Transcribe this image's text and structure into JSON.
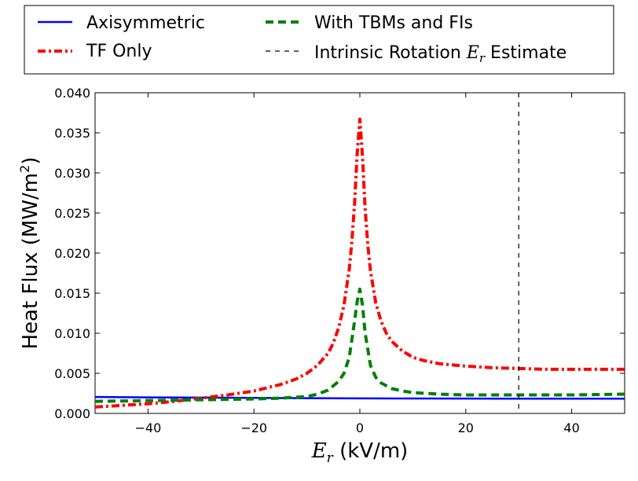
{
  "chart_data": {
    "type": "line",
    "xlabel_italic": "E",
    "xlabel_sub": "r",
    "xlabel_rest": " (kV/m)",
    "ylabel_main": "Heat Flux (MW/m",
    "ylabel_sup": "2",
    "ylabel_close": ")",
    "xlim": [
      -50,
      50
    ],
    "ylim": [
      0.0,
      0.04
    ],
    "xticks": [
      -40,
      -20,
      0,
      20,
      40
    ],
    "xtick_labels": [
      "−40",
      "−20",
      "0",
      "20",
      "40"
    ],
    "yticks": [
      0.0,
      0.005,
      0.01,
      0.015,
      0.02,
      0.025,
      0.03,
      0.035,
      0.04
    ],
    "ytick_labels": [
      "0.000",
      "0.005",
      "0.010",
      "0.015",
      "0.020",
      "0.025",
      "0.030",
      "0.035",
      "0.040"
    ],
    "grid": false,
    "legend_placement": "above plot",
    "series": [
      {
        "name": "Axisymmetric",
        "color": "#0000ff",
        "style": "solid",
        "x": [
          -50,
          -40,
          -30,
          -20,
          -10,
          0,
          10,
          20,
          30,
          40,
          50
        ],
        "y": [
          0.00205,
          0.002,
          0.00197,
          0.00193,
          0.0019,
          0.00188,
          0.00186,
          0.00185,
          0.00184,
          0.00184,
          0.00184
        ]
      },
      {
        "name": "TF Only",
        "color": "#ff0000",
        "style": "dashdot",
        "x": [
          -50,
          -45,
          -40,
          -35,
          -30,
          -25,
          -20,
          -15,
          -12,
          -10,
          -8,
          -6,
          -5,
          -4,
          -3,
          -2,
          -1.5,
          -1,
          -0.5,
          0,
          0.5,
          1,
          1.5,
          2,
          3,
          4,
          5,
          6,
          8,
          10,
          12,
          15,
          20,
          25,
          30,
          35,
          40,
          45,
          50
        ],
        "y": [
          0.0008,
          0.001,
          0.0012,
          0.0015,
          0.0019,
          0.0023,
          0.0028,
          0.0036,
          0.0043,
          0.005,
          0.006,
          0.0075,
          0.0088,
          0.0107,
          0.0135,
          0.018,
          0.0215,
          0.0262,
          0.0325,
          0.0367,
          0.032,
          0.0255,
          0.021,
          0.0178,
          0.0138,
          0.0115,
          0.01,
          0.009,
          0.0078,
          0.007,
          0.0066,
          0.0062,
          0.0059,
          0.0057,
          0.0056,
          0.0055,
          0.0055,
          0.0055,
          0.0055
        ]
      },
      {
        "name": "With TBMs and FIs",
        "color": "#008000",
        "style": "dashed",
        "x": [
          -50,
          -40,
          -30,
          -20,
          -15,
          -10,
          -8,
          -6,
          -4,
          -3,
          -2,
          -1,
          -0.5,
          0,
          0.5,
          1,
          2,
          3,
          4,
          6,
          8,
          10,
          15,
          20,
          30,
          40,
          50
        ],
        "y": [
          0.0015,
          0.0016,
          0.0017,
          0.0018,
          0.0019,
          0.0021,
          0.0024,
          0.0029,
          0.004,
          0.005,
          0.007,
          0.0115,
          0.014,
          0.0155,
          0.0135,
          0.01,
          0.006,
          0.0045,
          0.0038,
          0.0031,
          0.0028,
          0.0026,
          0.0024,
          0.0023,
          0.0023,
          0.0023,
          0.0024
        ]
      },
      {
        "name_prefix": "Intrinsic Rotation ",
        "name_italic": "E",
        "name_sub": "r",
        "name_suffix": " Estimate",
        "color": "#000000",
        "style": "thin-dashed",
        "vline_x": 30
      }
    ]
  }
}
